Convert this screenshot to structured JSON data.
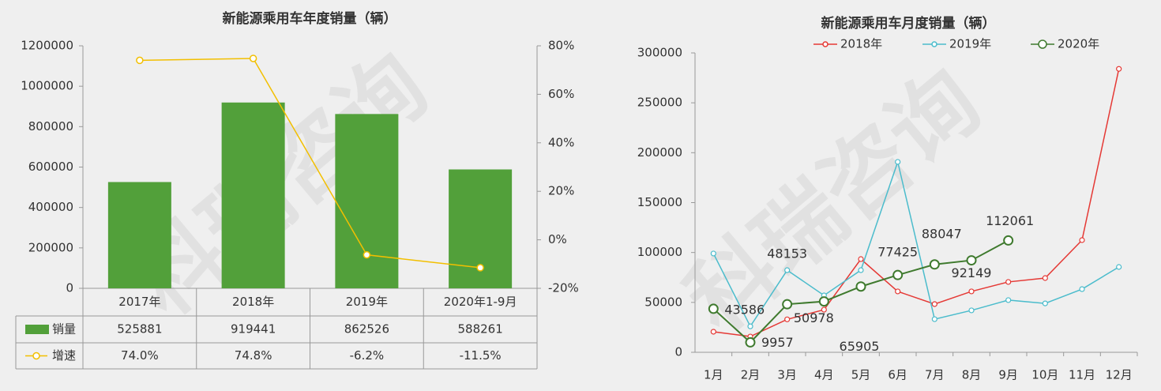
{
  "watermark": "科瑞咨询",
  "chart_data": [
    {
      "type": "bar",
      "title": "新能源乘用车年度销量（辆）",
      "categories": [
        "2017年",
        "2018年",
        "2019年",
        "2020年1-9月"
      ],
      "series": [
        {
          "name": "销量",
          "color": "#52a03a",
          "values": [
            525881,
            919441,
            862526,
            588261
          ]
        },
        {
          "name": "增速",
          "type": "line",
          "axis": "y2",
          "color": "#f2bf00",
          "values": [
            74.0,
            74.8,
            -6.2,
            -11.5
          ],
          "value_labels": [
            "74.0%",
            "74.8%",
            "-6.2%",
            "-11.5%"
          ]
        }
      ],
      "ylim": [
        0,
        1200000
      ],
      "yticks": [
        0,
        200000,
        400000,
        600000,
        800000,
        1000000,
        1200000
      ],
      "y2lim": [
        -20,
        80
      ],
      "y2ticks": [
        {
          "value": -20,
          "label": "-20%"
        },
        {
          "value": 0,
          "label": "0%"
        },
        {
          "value": 20,
          "label": "20%"
        },
        {
          "value": 40,
          "label": "40%"
        },
        {
          "value": 60,
          "label": "60%"
        },
        {
          "value": 80,
          "label": "80%"
        }
      ],
      "grid": false,
      "data_table": true
    },
    {
      "type": "line",
      "title": "新能源乘用车月度销量（辆）",
      "categories": [
        "1月",
        "2月",
        "3月",
        "4月",
        "5月",
        "6月",
        "7月",
        "8月",
        "9月",
        "10月",
        "11月",
        "12月"
      ],
      "series": [
        {
          "name": "2018年",
          "color": "#e53935",
          "values": [
            20600,
            15800,
            33000,
            42700,
            93400,
            61000,
            48300,
            61000,
            70500,
            74400,
            112400,
            284000
          ]
        },
        {
          "name": "2019年",
          "color": "#4bbccc",
          "values": [
            99000,
            26000,
            82300,
            57000,
            82300,
            190800,
            33200,
            42000,
            52300,
            49000,
            63300,
            85500
          ]
        },
        {
          "name": "2020年",
          "color": "#3f7a2e",
          "values": [
            43586,
            9957,
            48153,
            50978,
            65905,
            77425,
            88047,
            92149,
            112061,
            null,
            null,
            null
          ],
          "data_labels": true
        }
      ],
      "ylim": [
        0,
        300000
      ],
      "yticks": [
        0,
        50000,
        100000,
        150000,
        200000,
        250000,
        300000
      ],
      "grid": false,
      "legend": "top"
    }
  ]
}
